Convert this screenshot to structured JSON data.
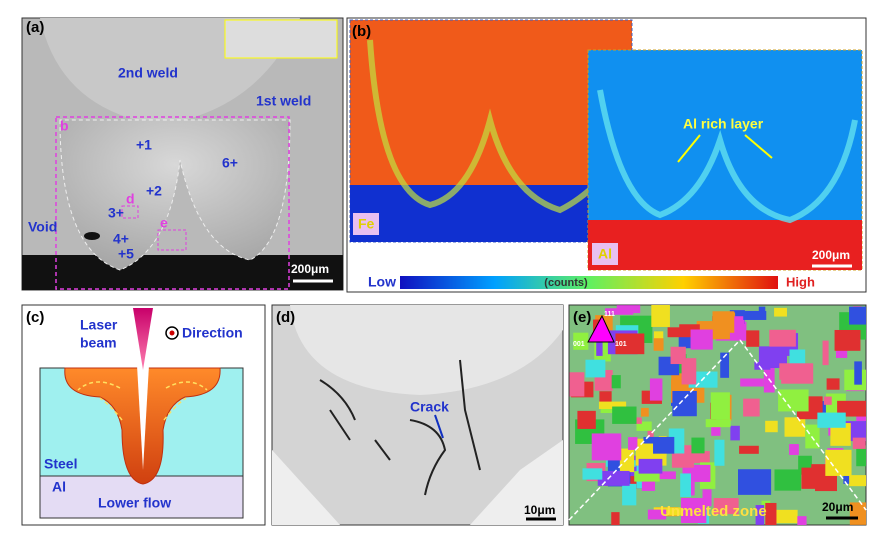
{
  "panel_a": {
    "label": "(a)",
    "weld_2": "2nd weld",
    "weld_1": "1st weld",
    "box_b": "b",
    "points": [
      "+1",
      "+2",
      "3+",
      "4+",
      "+5",
      "6+"
    ],
    "box_d": "d",
    "box_e": "e",
    "void": "Void",
    "scale": "200μm"
  },
  "panel_b": {
    "label": "(b)",
    "fe": "Fe",
    "al": "Al",
    "annotation": "Al rich layer",
    "scale": "200μm",
    "colorbar": {
      "low": "Low",
      "unit": "(counts)",
      "high": "High"
    }
  },
  "panel_c": {
    "label": "(c)",
    "laser": [
      "Laser",
      "beam"
    ],
    "direction": "Direction",
    "steel": "Steel",
    "al": "Al",
    "flow": "Lower flow"
  },
  "panel_d": {
    "label": "(d)",
    "crack": "Crack",
    "scale": "10μm"
  },
  "panel_e": {
    "label": "(e)",
    "ipf": [
      "111",
      "001",
      "101"
    ],
    "zone": "Unmelted zone",
    "scale": "20μm"
  }
}
